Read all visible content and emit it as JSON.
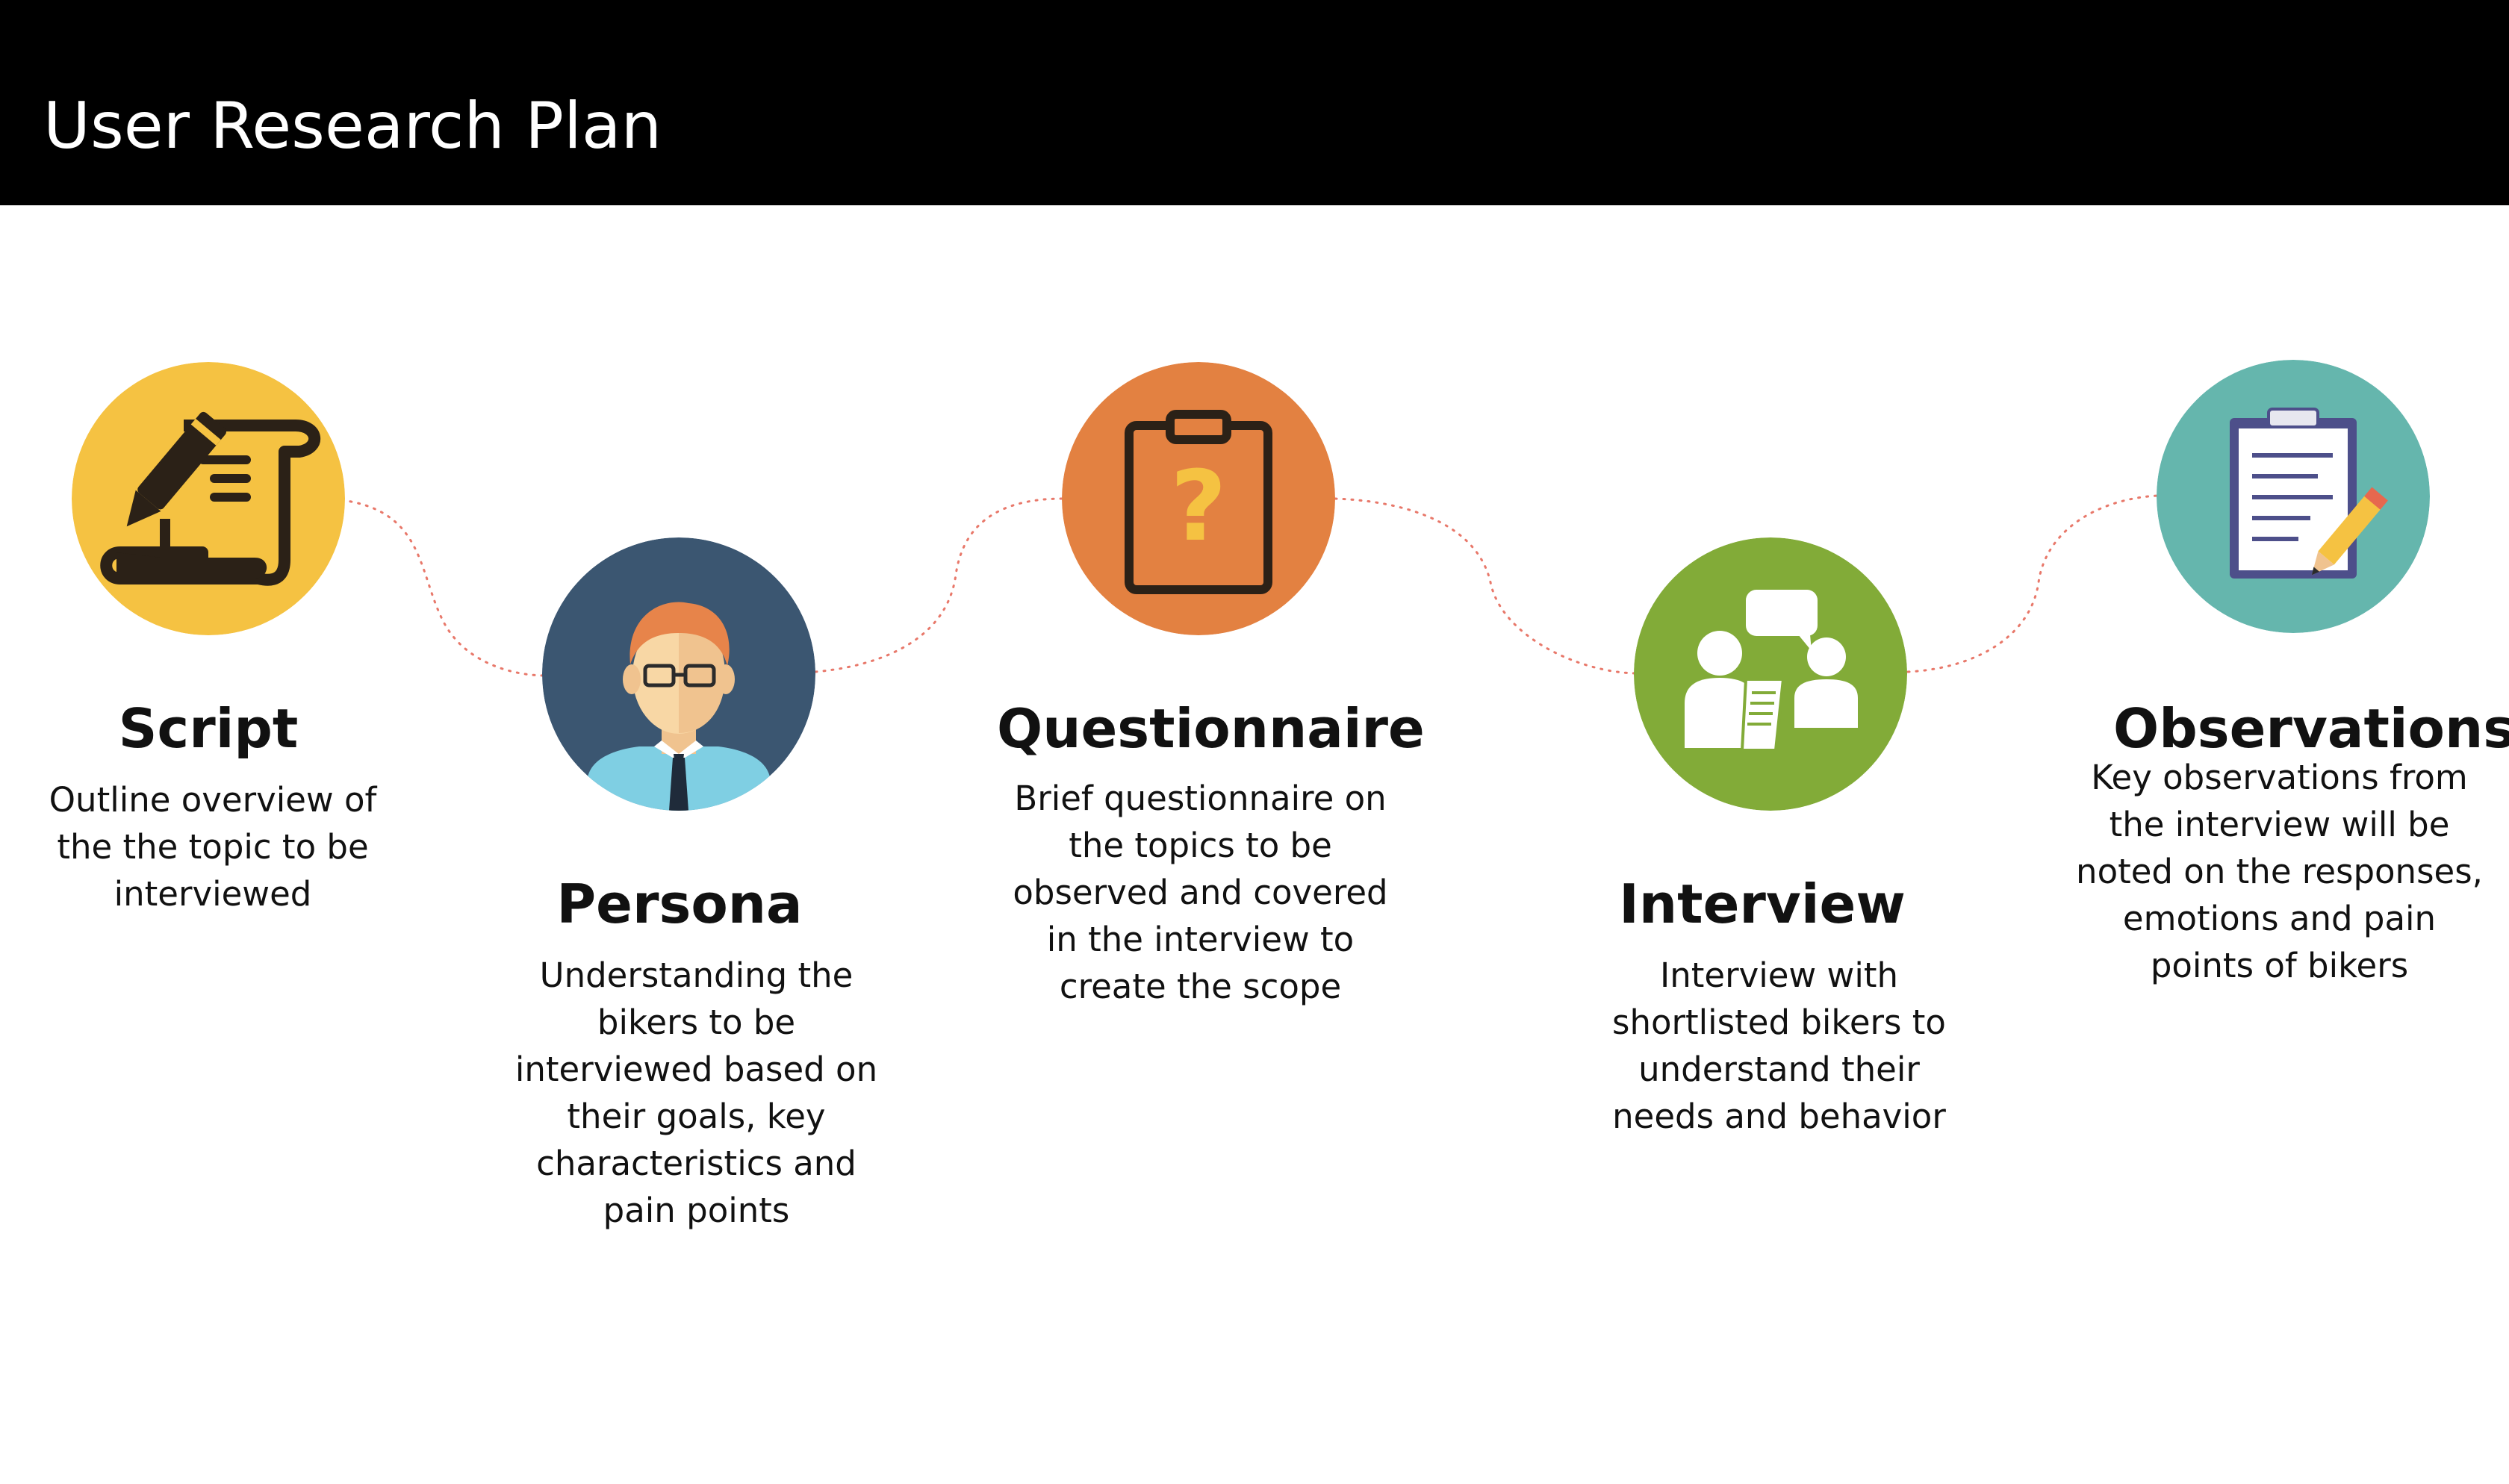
{
  "title": "User Research Plan",
  "colors": {
    "header_bg": "#000000",
    "connector": "#e8786a",
    "script": "#f5c242",
    "persona": "#3b5671",
    "questionnaire": "#e38141",
    "interview": "#82ab38",
    "observations": "#65b6ad"
  },
  "steps": [
    {
      "title": "Script",
      "description": "Outline overview of the the topic to be interviewed",
      "icon": "scroll-pen-icon"
    },
    {
      "title": "Persona",
      "description": "Understanding the bikers to be interviewed based on their goals, key characteristics and pain points",
      "icon": "person-with-glasses-icon"
    },
    {
      "title": "Questionnaire",
      "description": "Brief questionnaire on the topics to be observed and covered in the interview to create the scope",
      "icon": "clipboard-question-icon"
    },
    {
      "title": "Interview",
      "description": "Interview with shortlisted bikers to understand their needs and behavior",
      "icon": "two-people-chat-icon"
    },
    {
      "title": "Observations",
      "description": "Key observations from the interview will be noted on the responses, emotions and pain points of bikers",
      "icon": "clipboard-pencil-icon"
    }
  ]
}
